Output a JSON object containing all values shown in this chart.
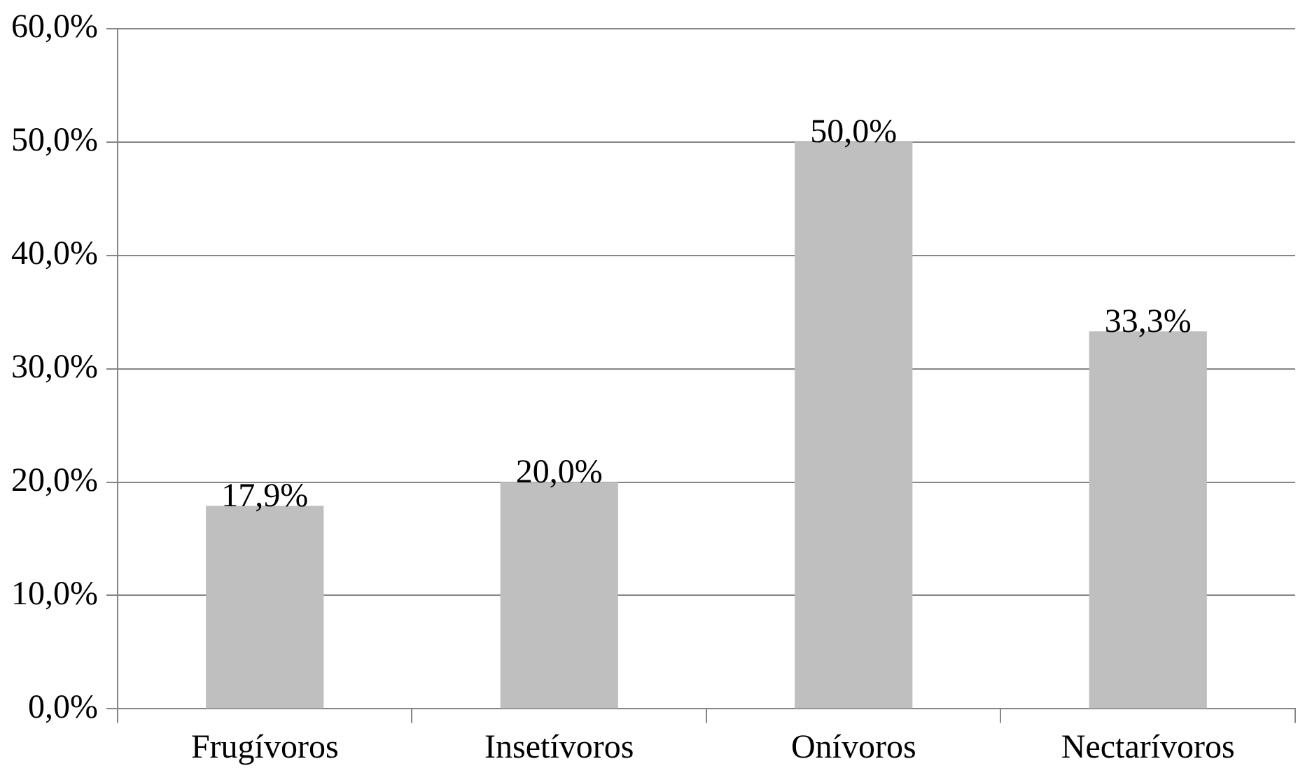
{
  "chart_data": {
    "type": "bar",
    "categories": [
      "Frugívoros",
      "Insetívoros",
      "Onívoros",
      "Nectarívoros"
    ],
    "values": [
      17.9,
      20.0,
      50.0,
      33.3
    ],
    "value_labels": [
      "17,9%",
      "20,0%",
      "50,0%",
      "33,3%"
    ],
    "color": "#bfbfbf",
    "ylim": [
      0,
      60
    ],
    "yticks": [
      {
        "value": 0,
        "label": "0,0%"
      },
      {
        "value": 10,
        "label": "10,0%"
      },
      {
        "value": 20,
        "label": "20,0%"
      },
      {
        "value": 30,
        "label": "30,0%"
      },
      {
        "value": 40,
        "label": "40,0%"
      },
      {
        "value": 50,
        "label": "50,0%"
      },
      {
        "value": 60,
        "label": "60,0%"
      }
    ],
    "grid": "y",
    "legend": false
  }
}
